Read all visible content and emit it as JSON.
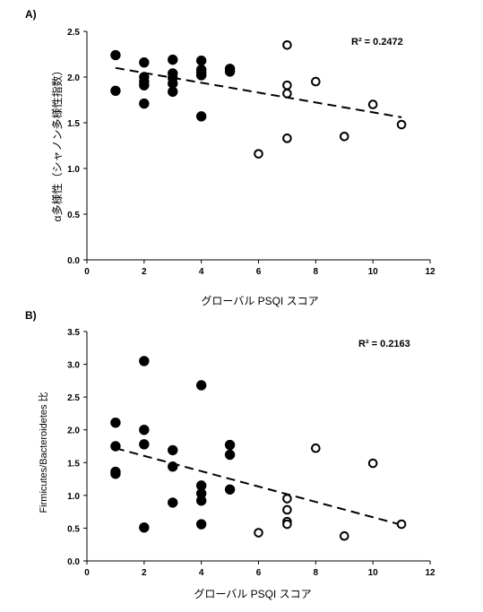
{
  "chart_data": [
    {
      "panel_label": "A)",
      "type": "scatter",
      "xlabel": "グローバル PSQI スコア",
      "ylabel": "α多様性（シャノン多様性指数）",
      "annotation": "R² = 0.2472",
      "xlim": [
        0,
        12
      ],
      "ylim": [
        0,
        2.5
      ],
      "x_ticks": [
        "0",
        "2",
        "4",
        "6",
        "8",
        "10",
        "12"
      ],
      "y_ticks": [
        "0.0",
        "0.5",
        "1.0",
        "1.5",
        "2.0",
        "2.5"
      ],
      "series": [
        {
          "marker": "filled",
          "points": [
            [
              1,
              2.24
            ],
            [
              1,
              1.85
            ],
            [
              2,
              2.16
            ],
            [
              2,
              2.0
            ],
            [
              2,
              1.95
            ],
            [
              2,
              1.91
            ],
            [
              2,
              1.71
            ],
            [
              3,
              2.19
            ],
            [
              3,
              2.04
            ],
            [
              3,
              1.99
            ],
            [
              3,
              1.93
            ],
            [
              3,
              1.84
            ],
            [
              4,
              2.18
            ],
            [
              4,
              2.08
            ],
            [
              4,
              2.05
            ],
            [
              4,
              2.02
            ],
            [
              4,
              1.57
            ],
            [
              5,
              2.09
            ],
            [
              5,
              2.06
            ]
          ]
        },
        {
          "marker": "open",
          "points": [
            [
              6,
              1.16
            ],
            [
              7,
              2.35
            ],
            [
              7,
              1.91
            ],
            [
              7,
              1.82
            ],
            [
              7,
              1.33
            ],
            [
              8,
              1.95
            ],
            [
              9,
              1.35
            ],
            [
              10,
              1.7
            ],
            [
              11,
              1.48
            ]
          ]
        }
      ],
      "trendline": {
        "style": "dashed",
        "x": [
          1,
          11
        ],
        "y": [
          2.1,
          1.56
        ]
      }
    },
    {
      "panel_label": "B)",
      "type": "scatter",
      "xlabel": "グローバル PSQI スコア",
      "ylabel": "Firmicutes/Bacteroidetes 比",
      "annotation": "R² = 0.2163",
      "xlim": [
        0,
        12
      ],
      "ylim": [
        0,
        3.5
      ],
      "x_ticks": [
        "0",
        "2",
        "4",
        "6",
        "8",
        "10",
        "12"
      ],
      "y_ticks": [
        "0.0",
        "0.5",
        "1.0",
        "1.5",
        "2.0",
        "2.5",
        "3.0",
        "3.5"
      ],
      "series": [
        {
          "marker": "filled",
          "points": [
            [
              1,
              2.11
            ],
            [
              1,
              1.75
            ],
            [
              1,
              1.36
            ],
            [
              1,
              1.33
            ],
            [
              2,
              3.05
            ],
            [
              2,
              2.0
            ],
            [
              2,
              1.78
            ],
            [
              2,
              0.51
            ],
            [
              3,
              1.69
            ],
            [
              3,
              1.44
            ],
            [
              3,
              0.89
            ],
            [
              4,
              2.68
            ],
            [
              4,
              1.15
            ],
            [
              4,
              1.03
            ],
            [
              4,
              0.92
            ],
            [
              4,
              0.56
            ],
            [
              5,
              1.77
            ],
            [
              5,
              1.62
            ],
            [
              5,
              1.09
            ]
          ]
        },
        {
          "marker": "open",
          "points": [
            [
              6,
              0.43
            ],
            [
              7,
              0.95
            ],
            [
              7,
              0.78
            ],
            [
              7,
              0.6
            ],
            [
              7,
              0.56
            ],
            [
              8,
              1.72
            ],
            [
              9,
              0.38
            ],
            [
              10,
              1.49
            ],
            [
              11,
              0.56
            ]
          ]
        }
      ],
      "trendline": {
        "style": "dashed",
        "x": [
          1,
          11
        ],
        "y": [
          1.72,
          0.55
        ]
      }
    }
  ]
}
